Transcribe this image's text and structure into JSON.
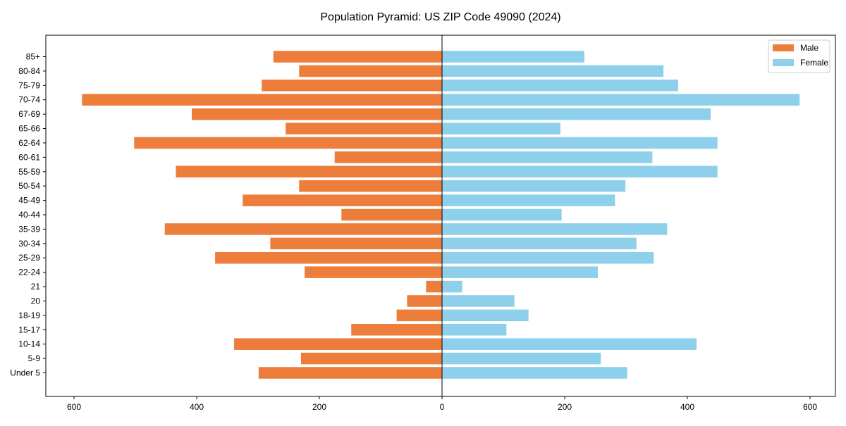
{
  "chart_data": {
    "type": "bar",
    "orientation": "horizontal",
    "title": "Population Pyramid: US ZIP Code 49090 (2024)",
    "xlabel": "",
    "ylabel": "",
    "xlim": [
      -640,
      640
    ],
    "xticks": [
      -600,
      -400,
      -200,
      0,
      200,
      400,
      600
    ],
    "xtick_labels": [
      "600",
      "400",
      "200",
      "0",
      "200",
      "400",
      "600"
    ],
    "grid": false,
    "legend_position": "top-right",
    "categories": [
      "Under 5",
      "5-9",
      "10-14",
      "15-17",
      "18-19",
      "20",
      "21",
      "22-24",
      "25-29",
      "30-34",
      "35-39",
      "40-44",
      "45-49",
      "50-54",
      "55-59",
      "60-61",
      "62-64",
      "65-66",
      "67-69",
      "70-74",
      "75-79",
      "80-84",
      "85+"
    ],
    "series": [
      {
        "name": "Male",
        "color": "#ed7d3a",
        "direction": "left",
        "values": [
          299,
          230,
          339,
          148,
          74,
          57,
          26,
          224,
          370,
          280,
          452,
          164,
          325,
          233,
          434,
          175,
          502,
          255,
          408,
          587,
          294,
          233,
          275
        ]
      },
      {
        "name": "Female",
        "color": "#8ecfeb",
        "direction": "right",
        "values": [
          302,
          259,
          415,
          105,
          141,
          118,
          33,
          254,
          345,
          317,
          367,
          195,
          282,
          299,
          449,
          343,
          449,
          193,
          438,
          583,
          385,
          361,
          232
        ]
      }
    ]
  }
}
